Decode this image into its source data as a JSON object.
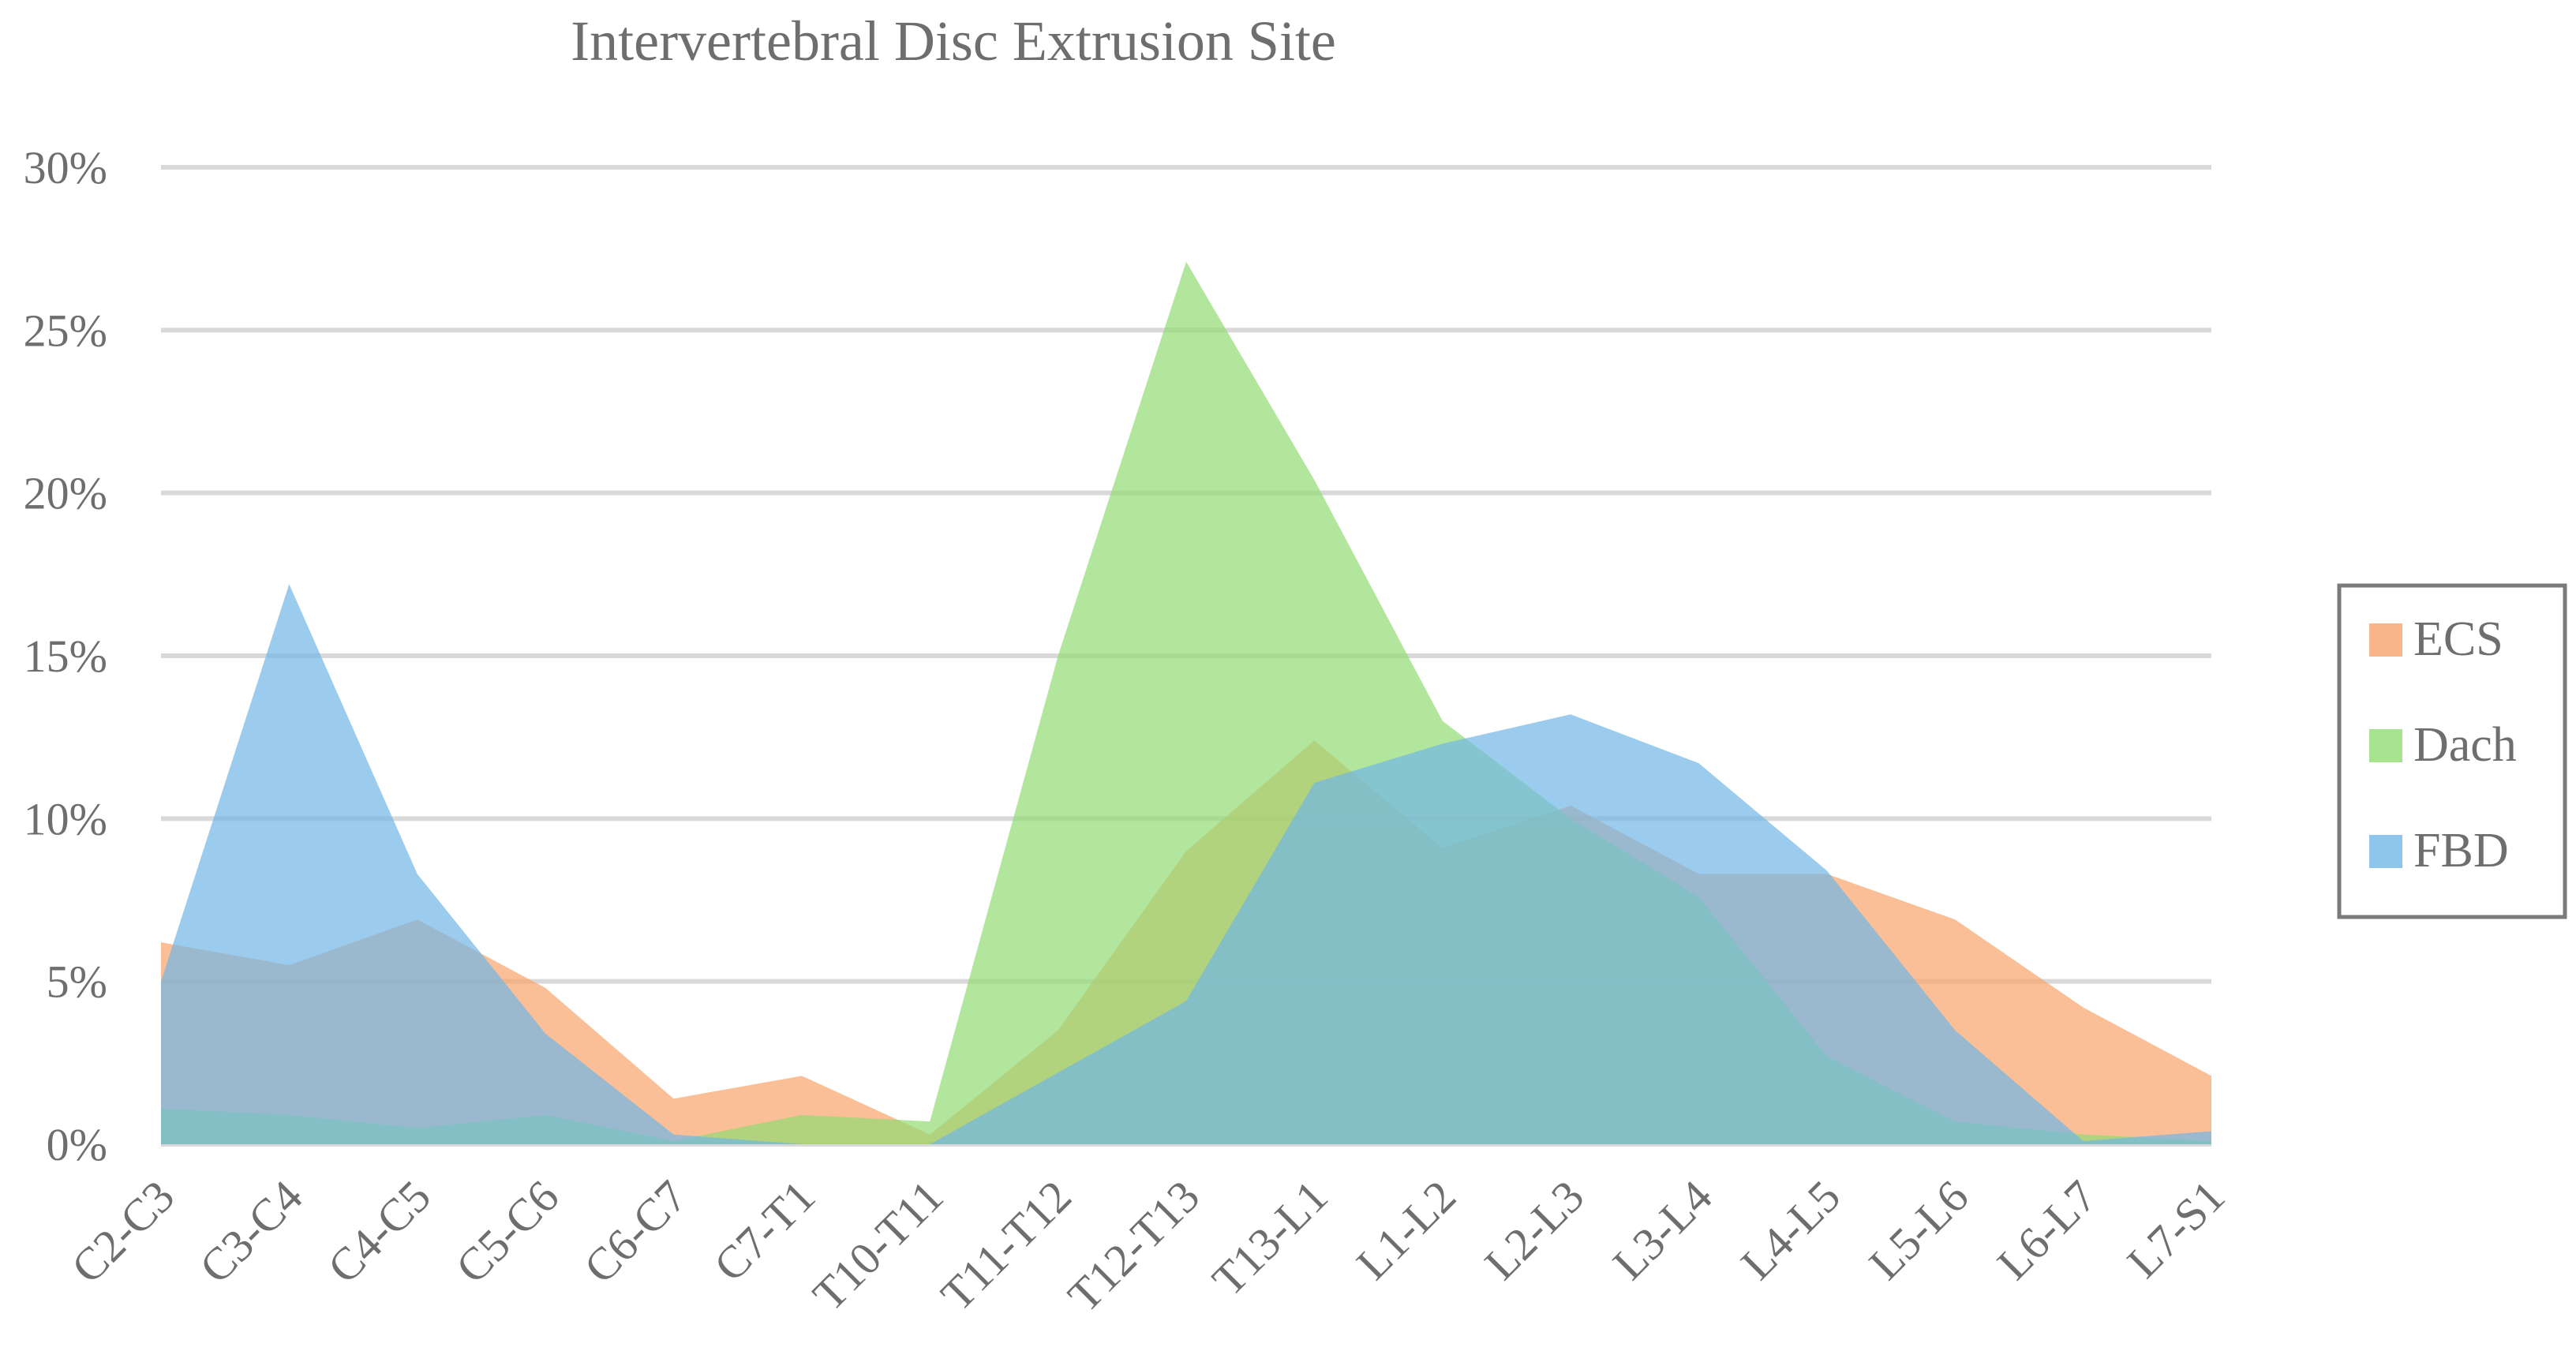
{
  "chart_data": {
    "type": "area",
    "title": "Intervertebral Disc Extrusion Site",
    "categories": [
      "C2-C3",
      "C3-C4",
      "C4-C5",
      "C5-C6",
      "C6-C7",
      "C7-T1",
      "T10-T11",
      "T11-T12",
      "T12-T13",
      "T13-L1",
      "L1-L2",
      "L2-L3",
      "L3-L4",
      "L4-L5",
      "L5-L6",
      "L6-L7",
      "L7-S1"
    ],
    "ylim": [
      0,
      30
    ],
    "yticks": [
      "0%",
      "5%",
      "10%",
      "15%",
      "20%",
      "25%",
      "30%"
    ],
    "grid": true,
    "legend_position": "right",
    "series": [
      {
        "name": "ECS",
        "color": "#f8a46a",
        "values": [
          6.2,
          5.5,
          6.9,
          4.8,
          1.4,
          2.1,
          0.3,
          3.5,
          9.0,
          12.4,
          9.1,
          10.4,
          8.3,
          8.3,
          6.9,
          4.2,
          2.1
        ]
      },
      {
        "name": "Dach",
        "color": "#92dc74",
        "values": [
          1.1,
          0.9,
          0.5,
          0.9,
          0.1,
          0.9,
          0.7,
          15.0,
          27.1,
          20.4,
          13.0,
          10.0,
          7.6,
          2.7,
          0.7,
          0.3,
          0.1
        ]
      },
      {
        "name": "FBD",
        "color": "#72b7e6",
        "values": [
          5.0,
          17.2,
          8.3,
          3.4,
          0.3,
          0.0,
          0.0,
          2.2,
          4.4,
          11.1,
          12.3,
          13.2,
          11.7,
          8.4,
          3.5,
          0.1,
          0.4
        ]
      }
    ]
  }
}
